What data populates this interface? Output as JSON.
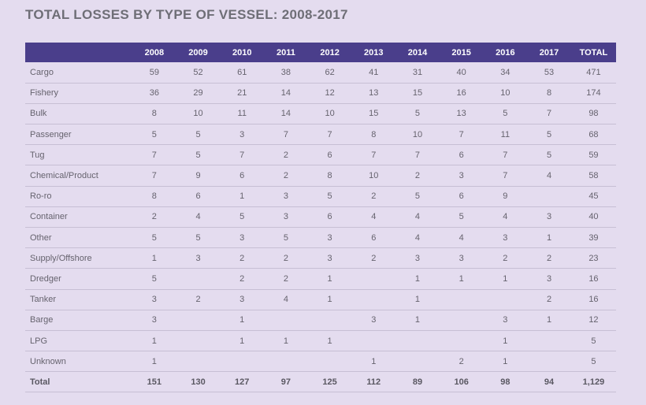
{
  "title": "TOTAL LOSSES BY TYPE OF VESSEL: 2008-2017",
  "headers": [
    "",
    "2008",
    "2009",
    "2010",
    "2011",
    "2012",
    "2013",
    "2014",
    "2015",
    "2016",
    "2017",
    "TOTAL"
  ],
  "rows": [
    [
      "Cargo",
      "59",
      "52",
      "61",
      "38",
      "62",
      "41",
      "31",
      "40",
      "34",
      "53",
      "471"
    ],
    [
      "Fishery",
      "36",
      "29",
      "21",
      "14",
      "12",
      "13",
      "15",
      "16",
      "10",
      "8",
      "174"
    ],
    [
      "Bulk",
      "8",
      "10",
      "11",
      "14",
      "10",
      "15",
      "5",
      "13",
      "5",
      "7",
      "98"
    ],
    [
      "Passenger",
      "5",
      "5",
      "3",
      "7",
      "7",
      "8",
      "10",
      "7",
      "11",
      "5",
      "68"
    ],
    [
      "Tug",
      "7",
      "5",
      "7",
      "2",
      "6",
      "7",
      "7",
      "6",
      "7",
      "5",
      "59"
    ],
    [
      "Chemical/Product",
      "7",
      "9",
      "6",
      "2",
      "8",
      "10",
      "2",
      "3",
      "7",
      "4",
      "58"
    ],
    [
      "Ro-ro",
      "8",
      "6",
      "1",
      "3",
      "5",
      "2",
      "5",
      "6",
      "9",
      "",
      "45"
    ],
    [
      "Container",
      "2",
      "4",
      "5",
      "3",
      "6",
      "4",
      "4",
      "5",
      "4",
      "3",
      "40"
    ],
    [
      "Other",
      "5",
      "5",
      "3",
      "5",
      "3",
      "6",
      "4",
      "4",
      "3",
      "1",
      "39"
    ],
    [
      "Supply/Offshore",
      "1",
      "3",
      "2",
      "2",
      "3",
      "2",
      "3",
      "3",
      "2",
      "2",
      "23"
    ],
    [
      "Dredger",
      "5",
      "",
      "2",
      "2",
      "1",
      "",
      "1",
      "1",
      "1",
      "3",
      "16"
    ],
    [
      "Tanker",
      "3",
      "2",
      "3",
      "4",
      "1",
      "",
      "1",
      "",
      "",
      "2",
      "16"
    ],
    [
      "Barge",
      "3",
      "",
      "1",
      "",
      "",
      "3",
      "1",
      "",
      "3",
      "1",
      "12"
    ],
    [
      "LPG",
      "1",
      "",
      "1",
      "1",
      "1",
      "",
      "",
      "",
      "1",
      "",
      "5"
    ],
    [
      "Unknown",
      "1",
      "",
      "",
      "",
      "",
      "1",
      "",
      "2",
      "1",
      "",
      "5"
    ]
  ],
  "total_row": [
    "Total",
    "151",
    "130",
    "127",
    "97",
    "125",
    "112",
    "89",
    "106",
    "98",
    "94",
    "1,129"
  ]
}
